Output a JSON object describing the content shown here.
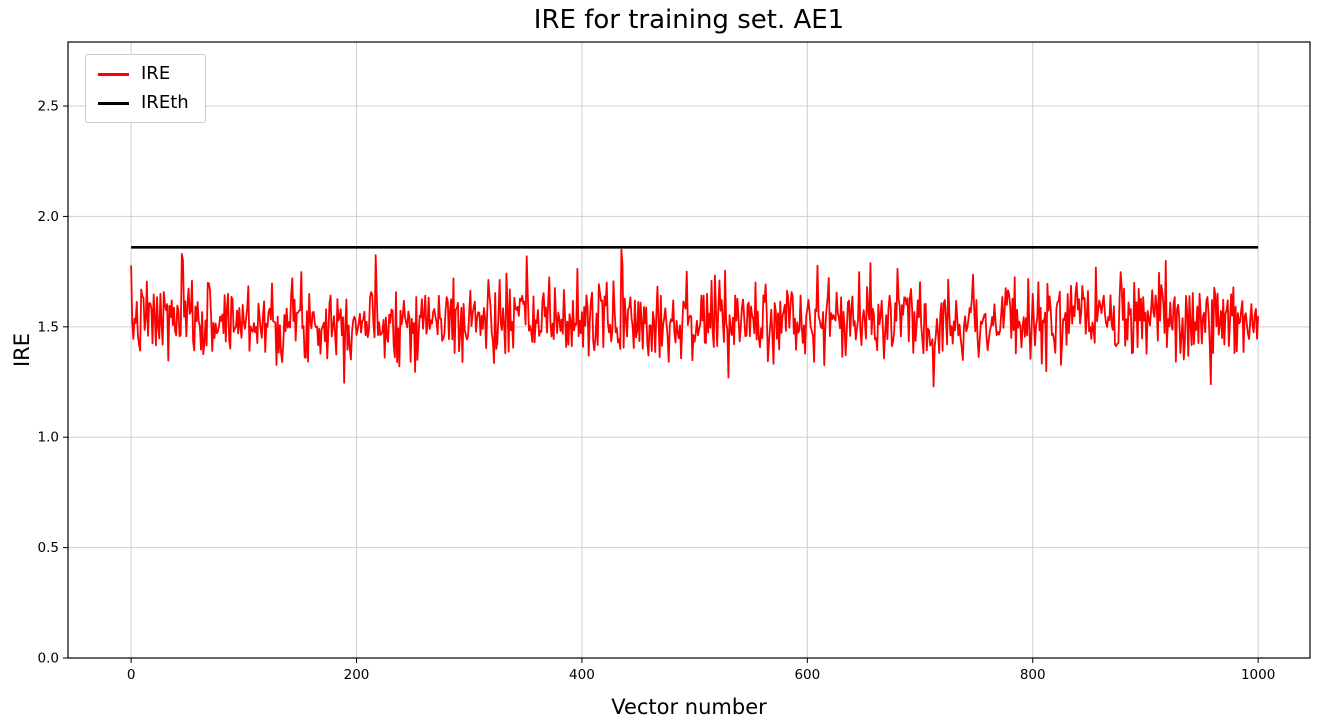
{
  "chart_data": {
    "type": "line",
    "title": "IRE for training set. AE1",
    "xlabel": "Vector number",
    "ylabel": "IRE",
    "xlim": [
      -56,
      1046
    ],
    "ylim": [
      0,
      2.79
    ],
    "xticks": [
      0,
      200,
      400,
      600,
      800,
      1000
    ],
    "yticks": [
      0.0,
      0.5,
      1.0,
      1.5,
      2.0,
      2.5
    ],
    "grid": true,
    "grid_color": "#cfcfcf",
    "legend_position": "upper-left",
    "series": [
      {
        "name": "IRE",
        "color": "#ff0000",
        "line_width": 1.8,
        "x_start": 0,
        "x_end": 1000,
        "n": 1001,
        "generator": {
          "kind": "gaussian-noise",
          "mean": 1.53,
          "std": 0.09,
          "min": 1.23,
          "max": 1.85,
          "seed": 7,
          "forced_points": [
            {
              "i": 45,
              "v": 1.83
            },
            {
              "i": 435,
              "v": 1.85
            },
            {
              "i": 436,
              "v": 1.78
            },
            {
              "i": 530,
              "v": 1.27
            },
            {
              "i": 958,
              "v": 1.24
            }
          ]
        }
      },
      {
        "name": "IREth",
        "color": "#000000",
        "line_width": 2.6,
        "x_start": 0,
        "x_end": 1000,
        "constant": 1.86
      }
    ]
  }
}
